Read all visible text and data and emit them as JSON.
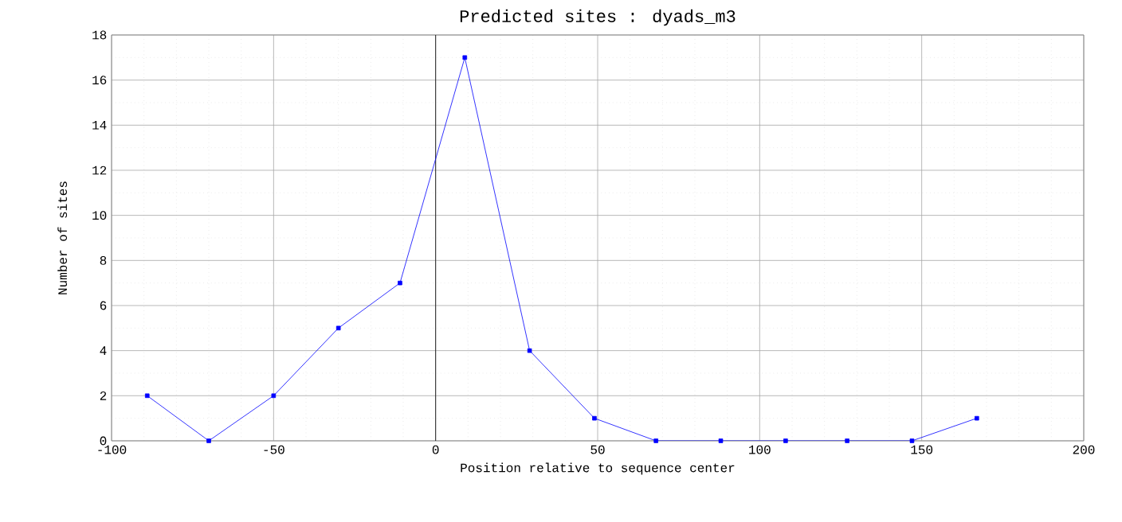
{
  "chart_data": {
    "type": "line",
    "title": "Predicted sites : dyads_m3",
    "xlabel": "Position relative to sequence center",
    "ylabel": "Number of sites",
    "x": [
      -89,
      -70,
      -50,
      -30,
      -11,
      9,
      29,
      49,
      68,
      88,
      108,
      127,
      147,
      167
    ],
    "series": [
      {
        "color": "#0000ff",
        "values": [
          2,
          0,
          2,
          5,
          7,
          17,
          4,
          1,
          0,
          0,
          0,
          0,
          0,
          1
        ]
      }
    ],
    "xlim": [
      -100,
      200
    ],
    "xticks": [
      -100,
      -50,
      0,
      50,
      100,
      150,
      200
    ],
    "ylim": [
      0,
      18
    ],
    "yticks": [
      0,
      2,
      4,
      6,
      8,
      10,
      12,
      14,
      16,
      18
    ],
    "grid": true,
    "marker": "square",
    "line_style": "solid",
    "ref_lines": [
      {
        "axis": "x",
        "value": 0,
        "color": "#000000"
      }
    ]
  }
}
